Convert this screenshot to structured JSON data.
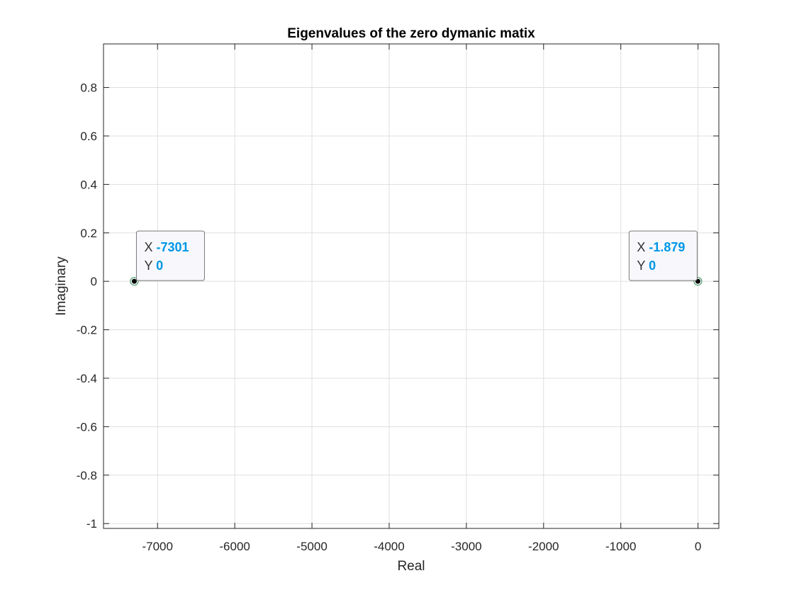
{
  "colors": {
    "grid": "#dfdfdf",
    "axis": "#262626",
    "marker_fill": "#000000",
    "marker_ring": "#2e8b57",
    "datatip_value": "#0097e6",
    "datatip_bg": "#f8f8fc",
    "datatip_border": "#7a7a7a"
  },
  "chart_data": {
    "type": "scatter",
    "title": "Eigenvalues of the zero dymanic matix",
    "xlabel": "Real",
    "ylabel": "Imaginary",
    "xlim": [
      -7700,
      270
    ],
    "ylim": [
      -1.02,
      0.98
    ],
    "grid": true,
    "box": true,
    "x_ticks": [
      -7000,
      -6000,
      -5000,
      -4000,
      -3000,
      -2000,
      -1000,
      0
    ],
    "x_tick_labels": [
      "-7000",
      "-6000",
      "-5000",
      "-4000",
      "-3000",
      "-2000",
      "-1000",
      "0"
    ],
    "y_ticks": [
      -1,
      -0.8,
      -0.6,
      -0.4,
      -0.2,
      0,
      0.2,
      0.4,
      0.6,
      0.8
    ],
    "y_tick_labels": [
      "-1",
      "-0.8",
      "-0.6",
      "-0.4",
      "-0.2",
      "0",
      "0.2",
      "0.4",
      "0.6",
      "0.8"
    ],
    "points": [
      {
        "x": -7301,
        "y": 0
      },
      {
        "x": -1.879,
        "y": 0
      }
    ],
    "datatips": [
      {
        "x_key": "X",
        "x_text": "-7301",
        "y_key": "Y",
        "y_text": "0",
        "anchor_x": -7301,
        "anchor_y": 0,
        "side": "right"
      },
      {
        "x_key": "X",
        "x_text": "-1.879",
        "y_key": "Y",
        "y_text": "0",
        "anchor_x": -1.879,
        "anchor_y": 0,
        "side": "left"
      }
    ]
  }
}
